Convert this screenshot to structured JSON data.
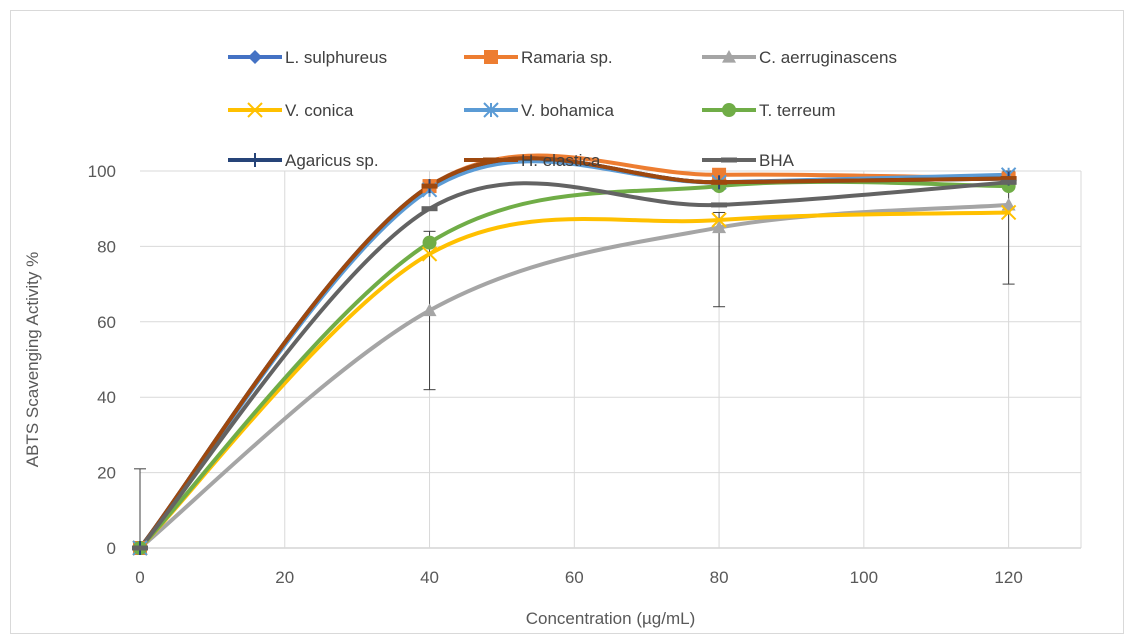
{
  "chart_data": {
    "type": "line",
    "title": "",
    "xlabel": "Concentration (µg/mL)",
    "ylabel": "ABTS Scavenging Activity %",
    "xlim": [
      0,
      130
    ],
    "ylim": [
      0,
      100
    ],
    "xticks": [
      0,
      20,
      40,
      60,
      80,
      100,
      120
    ],
    "yticks": [
      0,
      20,
      40,
      60,
      80,
      100
    ],
    "grid": true,
    "legend_position": "top",
    "x": [
      0,
      40,
      80,
      120
    ],
    "series": [
      {
        "name": "L. sulphureus",
        "values": [
          0,
          96,
          97,
          98
        ],
        "color": "#4472C4",
        "marker": "diamond"
      },
      {
        "name": "Ramaria sp.",
        "values": [
          0,
          96,
          99,
          98
        ],
        "color": "#ED7D31",
        "marker": "square"
      },
      {
        "name": "C. aerruginascens",
        "values": [
          0,
          63,
          85,
          91
        ],
        "color": "#A5A5A5",
        "marker": "triangle"
      },
      {
        "name": "V. conica",
        "values": [
          0,
          78,
          87,
          89
        ],
        "color": "#FFC000",
        "marker": "x"
      },
      {
        "name": "V. bohamica",
        "values": [
          0,
          95,
          97,
          99
        ],
        "color": "#5B9BD5",
        "marker": "star"
      },
      {
        "name": "T. terreum",
        "values": [
          0,
          81,
          96,
          96
        ],
        "color": "#70AD47",
        "marker": "circle"
      },
      {
        "name": "Agaricus sp.",
        "values": [
          0,
          96,
          97,
          98
        ],
        "color": "#264478",
        "marker": "plus"
      },
      {
        "name": "H. elastica",
        "values": [
          0,
          96,
          97,
          98
        ],
        "color": "#9E480E",
        "marker": "dash"
      },
      {
        "name": "BHA",
        "values": [
          0,
          90,
          91,
          97
        ],
        "color": "#636363",
        "marker": "dash"
      }
    ],
    "error_bars": [
      {
        "x": 0,
        "y": 0,
        "low": 0,
        "high": 21
      },
      {
        "x": 40,
        "y": 63,
        "low": 42,
        "high": 84
      },
      {
        "x": 80,
        "y": 85,
        "low": 64,
        "high": 89
      },
      {
        "x": 120,
        "y": 91,
        "low": 70,
        "high": 100
      }
    ]
  }
}
